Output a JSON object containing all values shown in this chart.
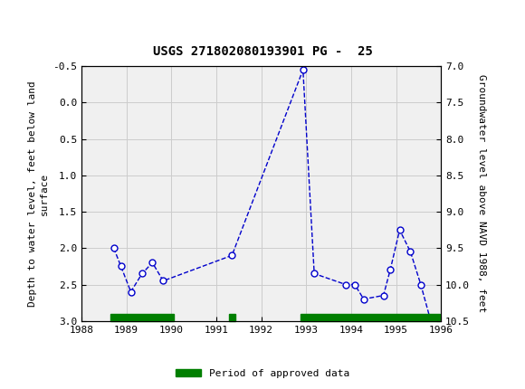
{
  "title": "USGS 271802080193901 PG -  25",
  "ylabel_left": "Depth to water level, feet below land\nsurface",
  "ylabel_right": "Groundwater level above NAVD 1988, feet",
  "xlim": [
    1988,
    1996
  ],
  "ylim_left": [
    -0.5,
    3.0
  ],
  "ylim_right": [
    7.0,
    10.5
  ],
  "xticks": [
    1988,
    1989,
    1990,
    1991,
    1992,
    1993,
    1994,
    1995,
    1996
  ],
  "yticks_left": [
    -0.5,
    0.0,
    0.5,
    1.0,
    1.5,
    2.0,
    2.5,
    3.0
  ],
  "yticks_right": [
    7.0,
    7.5,
    8.0,
    8.5,
    9.0,
    9.5,
    10.0,
    10.5
  ],
  "data_x": [
    1988.72,
    1988.88,
    1989.1,
    1989.35,
    1989.58,
    1989.82,
    1991.35,
    1992.93,
    1993.18,
    1993.88,
    1994.08,
    1994.28,
    1994.72,
    1994.87,
    1995.08,
    1995.32,
    1995.55,
    1995.75,
    1995.88
  ],
  "data_y": [
    2.0,
    2.25,
    2.6,
    2.35,
    2.2,
    2.45,
    2.1,
    -0.45,
    2.35,
    2.5,
    2.5,
    2.7,
    2.65,
    2.3,
    1.75,
    2.05,
    2.5,
    2.95,
    3.0
  ],
  "line_color": "#0000cc",
  "marker_color": "#0000cc",
  "marker_face": "white",
  "marker_size": 5,
  "line_style": "--",
  "line_width": 1.0,
  "approved_bars": [
    {
      "x_start": 1988.65,
      "x_end": 1990.05
    },
    {
      "x_start": 1991.28,
      "x_end": 1991.43
    },
    {
      "x_start": 1992.88,
      "x_end": 1995.97
    }
  ],
  "approved_bar_color": "#007f00",
  "header_color": "#006633",
  "plot_bg": "#f0f0f0",
  "grid_color": "#cccccc",
  "legend_label": "Period of approved data",
  "fig_width": 5.8,
  "fig_height": 4.3,
  "dpi": 100
}
